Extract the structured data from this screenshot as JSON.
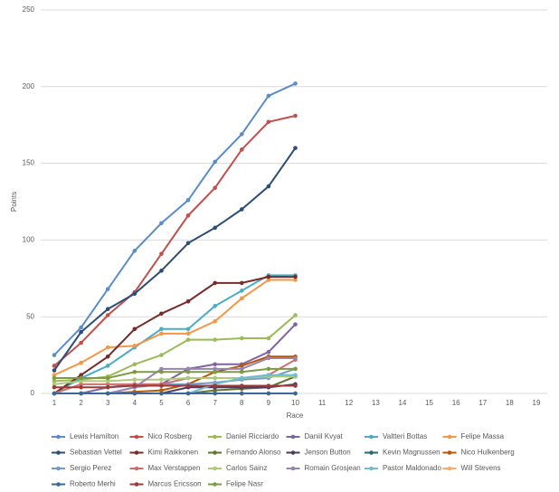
{
  "chart_data": {
    "type": "line",
    "xlabel": "Race",
    "ylabel": "Points",
    "categories": [
      1,
      2,
      3,
      4,
      5,
      6,
      7,
      8,
      9,
      10,
      11,
      12,
      13,
      14,
      15,
      16,
      17,
      18,
      19
    ],
    "ylim": [
      0,
      250
    ],
    "yticks": [
      0,
      50,
      100,
      150,
      200,
      250
    ],
    "grid": true,
    "legend": "bottom",
    "series": [
      {
        "name": "Lewis Hamilton",
        "color": "#5b8dc8",
        "values": [
          25,
          43,
          68,
          93,
          111,
          126,
          151,
          169,
          194,
          202,
          null,
          null,
          null,
          null,
          null,
          null,
          null,
          null,
          null
        ]
      },
      {
        "name": "Nico Rosberg",
        "color": "#c0504d",
        "values": [
          18,
          33,
          51,
          66,
          91,
          116,
          134,
          159,
          177,
          181,
          null,
          null,
          null,
          null,
          null,
          null,
          null,
          null,
          null
        ]
      },
      {
        "name": "Daniel Ricciardo",
        "color": "#9bbb59",
        "values": [
          8,
          9,
          11,
          19,
          25,
          35,
          35,
          36,
          36,
          51,
          null,
          null,
          null,
          null,
          null,
          null,
          null,
          null,
          null
        ]
      },
      {
        "name": "Daniil Kvyat",
        "color": "#8064a2",
        "values": [
          0,
          0,
          4,
          6,
          6,
          16,
          19,
          19,
          27,
          45,
          null,
          null,
          null,
          null,
          null,
          null,
          null,
          null,
          null
        ]
      },
      {
        "name": "Valtteri Bottas",
        "color": "#4bacc6",
        "values": [
          0,
          10,
          18,
          30,
          42,
          42,
          57,
          67,
          77,
          77,
          null,
          null,
          null,
          null,
          null,
          null,
          null,
          null,
          null
        ]
      },
      {
        "name": "Felipe Massa",
        "color": "#f79646",
        "values": [
          12,
          20,
          30,
          31,
          39,
          39,
          47,
          62,
          74,
          74,
          null,
          null,
          null,
          null,
          null,
          null,
          null,
          null,
          null
        ]
      },
      {
        "name": "Sebastian Vettel",
        "color": "#2c4d75",
        "values": [
          15,
          40,
          55,
          65,
          80,
          98,
          108,
          120,
          135,
          160,
          null,
          null,
          null,
          null,
          null,
          null,
          null,
          null,
          null
        ]
      },
      {
        "name": "Kimi Raikkonen",
        "color": "#772c2a",
        "values": [
          0,
          12,
          24,
          42,
          52,
          60,
          72,
          72,
          76,
          76,
          null,
          null,
          null,
          null,
          null,
          null,
          null,
          null,
          null
        ]
      },
      {
        "name": "Fernando Alonso",
        "color": "#5f7530",
        "values": [
          0,
          0,
          0,
          0,
          0,
          0,
          2,
          3,
          4,
          11,
          null,
          null,
          null,
          null,
          null,
          null,
          null,
          null,
          null
        ]
      },
      {
        "name": "Jenson Button",
        "color": "#4d3b62",
        "values": [
          0,
          0,
          0,
          0,
          0,
          4,
          4,
          4,
          4,
          6,
          null,
          null,
          null,
          null,
          null,
          null,
          null,
          null,
          null
        ]
      },
      {
        "name": "Kevin Magnussen",
        "color": "#276a7c",
        "values": [
          0,
          0,
          0,
          0,
          0,
          0,
          0,
          0,
          0,
          0,
          null,
          null,
          null,
          null,
          null,
          null,
          null,
          null,
          null
        ]
      },
      {
        "name": "Nico Hulkenberg",
        "color": "#b65708",
        "values": [
          0,
          0,
          0,
          1,
          2,
          6,
          14,
          18,
          24,
          24,
          null,
          null,
          null,
          null,
          null,
          null,
          null,
          null,
          null
        ]
      },
      {
        "name": "Sergio Perez",
        "color": "#729aca",
        "values": [
          0,
          0,
          0,
          4,
          6,
          6,
          7,
          9,
          10,
          16,
          null,
          null,
          null,
          null,
          null,
          null,
          null,
          null,
          null
        ]
      },
      {
        "name": "Max Verstappen",
        "color": "#d06e6b",
        "values": [
          0,
          6,
          6,
          6,
          6,
          10,
          10,
          10,
          12,
          22,
          null,
          null,
          null,
          null,
          null,
          null,
          null,
          null,
          null
        ]
      },
      {
        "name": "Carlos Sainz",
        "color": "#afc97a",
        "values": [
          6,
          8,
          8,
          9,
          9,
          10,
          10,
          10,
          11,
          11,
          null,
          null,
          null,
          null,
          null,
          null,
          null,
          null,
          null
        ]
      },
      {
        "name": "Romain Grosjean",
        "color": "#9983b5",
        "values": [
          0,
          0,
          0,
          4,
          16,
          16,
          16,
          16,
          23,
          23,
          null,
          null,
          null,
          null,
          null,
          null,
          null,
          null,
          null
        ]
      },
      {
        "name": "Pastor Maldonado",
        "color": "#6fbdd1",
        "values": [
          0,
          0,
          0,
          0,
          0,
          0,
          6,
          10,
          12,
          12,
          null,
          null,
          null,
          null,
          null,
          null,
          null,
          null,
          null
        ]
      },
      {
        "name": "Will Stevens",
        "color": "#f9ab6b",
        "values": [
          0,
          0,
          0,
          0,
          0,
          0,
          0,
          0,
          0,
          0,
          null,
          null,
          null,
          null,
          null,
          null,
          null,
          null,
          null
        ]
      },
      {
        "name": "Roberto Merhi",
        "color": "#3a679c",
        "values": [
          0,
          0,
          0,
          0,
          0,
          0,
          0,
          0,
          0,
          0,
          null,
          null,
          null,
          null,
          null,
          null,
          null,
          null,
          null
        ]
      },
      {
        "name": "Marcus Ericsson",
        "color": "#9c3b38",
        "values": [
          4,
          4,
          4,
          5,
          5,
          5,
          5,
          5,
          5,
          5,
          null,
          null,
          null,
          null,
          null,
          null,
          null,
          null,
          null
        ]
      },
      {
        "name": "Felipe Nasr",
        "color": "#7f9a41",
        "values": [
          10,
          10,
          10,
          14,
          14,
          14,
          14,
          14,
          16,
          16,
          null,
          null,
          null,
          null,
          null,
          null,
          null,
          null,
          null
        ]
      }
    ]
  }
}
